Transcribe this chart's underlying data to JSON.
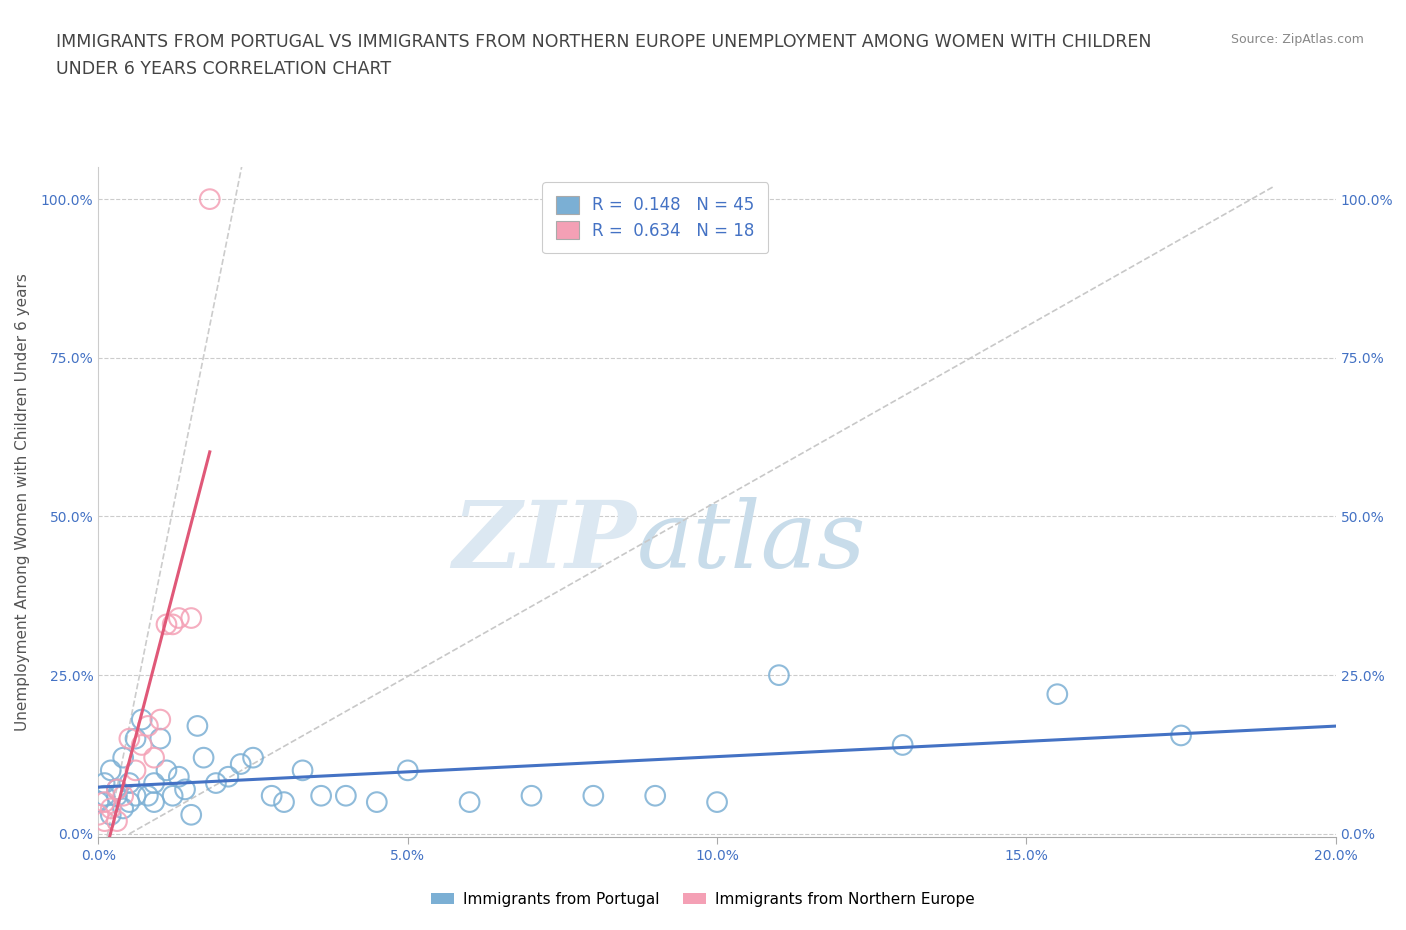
{
  "title_line1": "IMMIGRANTS FROM PORTUGAL VS IMMIGRANTS FROM NORTHERN EUROPE UNEMPLOYMENT AMONG WOMEN WITH CHILDREN",
  "title_line2": "UNDER 6 YEARS CORRELATION CHART",
  "source": "Source: ZipAtlas.com",
  "ylabel": "Unemployment Among Women with Children Under 6 years",
  "xlim": [
    0.0,
    0.2
  ],
  "ylim": [
    -0.005,
    1.05
  ],
  "xticklabels": [
    "0.0%",
    "5.0%",
    "10.0%",
    "15.0%",
    "20.0%"
  ],
  "xtickvalues": [
    0.0,
    0.05,
    0.1,
    0.15,
    0.2
  ],
  "yticklabels": [
    "0.0%",
    "25.0%",
    "50.0%",
    "75.0%",
    "100.0%"
  ],
  "ytickvalues": [
    0.0,
    0.25,
    0.5,
    0.75,
    1.0
  ],
  "r1": 0.148,
  "n1": 45,
  "r2": 0.634,
  "n2": 18,
  "color_portugal": "#7bafd4",
  "color_north_europe": "#f4a0b5",
  "trendline_color_portugal": "#4472c4",
  "trendline_color_north_europe": "#e05878",
  "dashed_line_color": "#cccccc",
  "background_color": "#ffffff",
  "legend_label1": "Immigrants from Portugal",
  "legend_label2": "Immigrants from Northern Europe",
  "portugal_x": [
    0.0,
    0.001,
    0.001,
    0.002,
    0.002,
    0.003,
    0.003,
    0.004,
    0.004,
    0.005,
    0.005,
    0.006,
    0.006,
    0.007,
    0.008,
    0.009,
    0.009,
    0.01,
    0.011,
    0.012,
    0.013,
    0.014,
    0.015,
    0.016,
    0.017,
    0.019,
    0.021,
    0.023,
    0.025,
    0.028,
    0.03,
    0.033,
    0.036,
    0.04,
    0.045,
    0.05,
    0.06,
    0.07,
    0.08,
    0.09,
    0.1,
    0.11,
    0.13,
    0.155,
    0.175
  ],
  "portugal_y": [
    0.05,
    0.06,
    0.08,
    0.03,
    0.1,
    0.07,
    0.06,
    0.04,
    0.12,
    0.08,
    0.05,
    0.15,
    0.06,
    0.18,
    0.06,
    0.05,
    0.08,
    0.15,
    0.1,
    0.06,
    0.09,
    0.07,
    0.03,
    0.17,
    0.12,
    0.08,
    0.09,
    0.11,
    0.12,
    0.06,
    0.05,
    0.1,
    0.06,
    0.06,
    0.05,
    0.1,
    0.05,
    0.06,
    0.06,
    0.06,
    0.05,
    0.25,
    0.14,
    0.22,
    0.155
  ],
  "north_europe_x": [
    0.0,
    0.001,
    0.001,
    0.002,
    0.003,
    0.003,
    0.004,
    0.005,
    0.006,
    0.007,
    0.008,
    0.009,
    0.01,
    0.011,
    0.012,
    0.013,
    0.015,
    0.018
  ],
  "north_europe_y": [
    0.03,
    0.02,
    0.05,
    0.04,
    0.02,
    0.07,
    0.06,
    0.15,
    0.1,
    0.14,
    0.17,
    0.12,
    0.18,
    0.33,
    0.33,
    0.34,
    0.34,
    1.0
  ],
  "grid_color": "#cccccc",
  "title_fontsize": 12.5,
  "axis_label_fontsize": 11,
  "tick_fontsize": 10,
  "legend_fontsize": 12,
  "watermark_zip_color": "#dce8f2",
  "watermark_atlas_color": "#c8dcea"
}
